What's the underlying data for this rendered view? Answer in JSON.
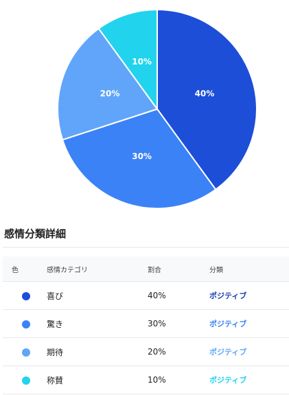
{
  "chart_data": {
    "type": "pie",
    "categories": [
      "喜び",
      "驚き",
      "期待",
      "称賛"
    ],
    "values": [
      40,
      30,
      20,
      10
    ],
    "labels": [
      "40%",
      "30%",
      "20%",
      "10%"
    ],
    "colors": [
      "#1d4ed8",
      "#3b82f6",
      "#60a5fa",
      "#22d3ee"
    ],
    "title": ""
  },
  "section_title": "感情分類詳細",
  "table": {
    "headers": {
      "color": "色",
      "category": "感情カテゴリ",
      "ratio": "割合",
      "type": "分類"
    },
    "rows": [
      {
        "color": "#1d4ed8",
        "category": "喜び",
        "ratio": "40%",
        "type": "ポジティブ",
        "type_color": "#1e40af"
      },
      {
        "color": "#3b82f6",
        "category": "驚き",
        "ratio": "30%",
        "type": "ポジティブ",
        "type_color": "#3b82f6"
      },
      {
        "color": "#60a5fa",
        "category": "期待",
        "ratio": "20%",
        "type": "ポジティブ",
        "type_color": "#60a5fa"
      },
      {
        "color": "#22d3ee",
        "category": "称賛",
        "ratio": "10%",
        "type": "ポジティブ",
        "type_color": "#22d3ee"
      }
    ]
  }
}
